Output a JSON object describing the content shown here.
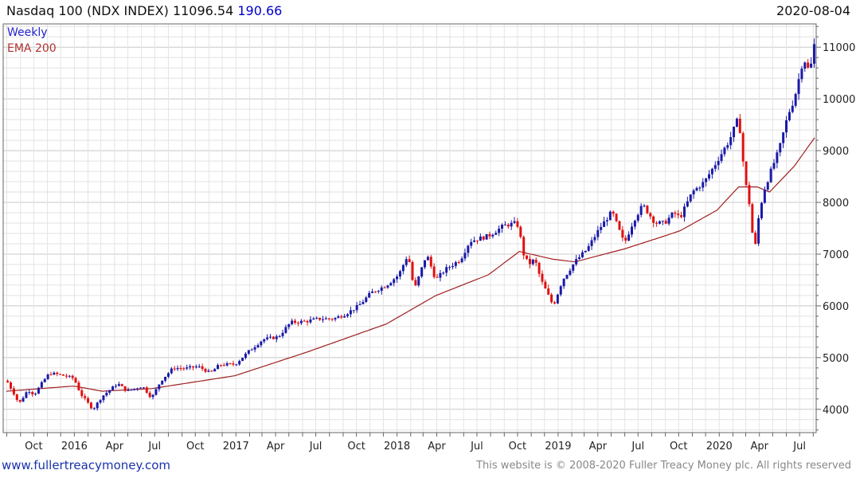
{
  "header": {
    "title": "Nasdaq 100 (NDX INDEX)",
    "last": "11096.54",
    "change": "190.66",
    "date": "2020-08-04"
  },
  "legend": {
    "period": "Weekly",
    "ema": "EMA 200"
  },
  "colors": {
    "up": "#1a1aa8",
    "down": "#e01010",
    "ema": "#a02020",
    "grid": "#d4d4d4",
    "legend_period": "#2222cc",
    "legend_ema": "#b03030"
  },
  "footer": {
    "left": "www.fullertreacymoney.com",
    "right": "This website is © 2008-2020 Fuller Treacy Money plc. All rights reserved"
  },
  "chart_data": {
    "type": "candlestick",
    "period": "weekly",
    "x_start": "2015-07-31",
    "x_end": "2020-08-04",
    "ylim": [
      3550,
      11450
    ],
    "yticks": [
      4000,
      5000,
      6000,
      7000,
      8000,
      9000,
      10000,
      11000
    ],
    "xticks": [
      {
        "label": "Oct",
        "date": "2015-10-01"
      },
      {
        "label": "2016",
        "date": "2016-01-01"
      },
      {
        "label": "Apr",
        "date": "2016-04-01"
      },
      {
        "label": "Jul",
        "date": "2016-07-01"
      },
      {
        "label": "Oct",
        "date": "2016-10-01"
      },
      {
        "label": "2017",
        "date": "2017-01-01"
      },
      {
        "label": "Apr",
        "date": "2017-04-01"
      },
      {
        "label": "Jul",
        "date": "2017-07-01"
      },
      {
        "label": "Oct",
        "date": "2017-10-01"
      },
      {
        "label": "2018",
        "date": "2018-01-01"
      },
      {
        "label": "Apr",
        "date": "2018-04-01"
      },
      {
        "label": "Jul",
        "date": "2018-07-01"
      },
      {
        "label": "Oct",
        "date": "2018-10-01"
      },
      {
        "label": "2019",
        "date": "2019-01-01"
      },
      {
        "label": "Apr",
        "date": "2019-04-01"
      },
      {
        "label": "Jul",
        "date": "2019-07-01"
      },
      {
        "label": "Oct",
        "date": "2019-10-01"
      },
      {
        "label": "2020",
        "date": "2020-01-01"
      },
      {
        "label": "Apr",
        "date": "2020-04-01"
      },
      {
        "label": "Jul",
        "date": "2020-07-01"
      }
    ],
    "close_anchors": [
      [
        "2015-08-01",
        4550
      ],
      [
        "2015-08-21",
        4250
      ],
      [
        "2015-08-28",
        4100
      ],
      [
        "2015-09-18",
        4380
      ],
      [
        "2015-10-02",
        4280
      ],
      [
        "2015-10-23",
        4550
      ],
      [
        "2015-11-06",
        4700
      ],
      [
        "2015-12-04",
        4660
      ],
      [
        "2015-12-31",
        4600
      ],
      [
        "2016-01-15",
        4300
      ],
      [
        "2016-02-12",
        4000
      ],
      [
        "2016-03-04",
        4250
      ],
      [
        "2016-04-08",
        4500
      ],
      [
        "2016-04-29",
        4350
      ],
      [
        "2016-06-03",
        4450
      ],
      [
        "2016-06-24",
        4220
      ],
      [
        "2016-07-15",
        4550
      ],
      [
        "2016-08-12",
        4800
      ],
      [
        "2016-09-09",
        4790
      ],
      [
        "2016-10-07",
        4830
      ],
      [
        "2016-11-04",
        4700
      ],
      [
        "2016-11-25",
        4860
      ],
      [
        "2016-12-30",
        4870
      ],
      [
        "2017-02-03",
        5150
      ],
      [
        "2017-03-03",
        5350
      ],
      [
        "2017-04-07",
        5400
      ],
      [
        "2017-05-05",
        5680
      ],
      [
        "2017-06-09",
        5700
      ],
      [
        "2017-07-07",
        5750
      ],
      [
        "2017-08-11",
        5750
      ],
      [
        "2017-09-08",
        5850
      ],
      [
        "2017-10-06",
        6000
      ],
      [
        "2017-11-03",
        6250
      ],
      [
        "2017-12-08",
        6400
      ],
      [
        "2018-01-05",
        6600
      ],
      [
        "2018-01-26",
        7000
      ],
      [
        "2018-02-09",
        6300
      ],
      [
        "2018-03-09",
        7000
      ],
      [
        "2018-03-30",
        6500
      ],
      [
        "2018-04-20",
        6700
      ],
      [
        "2018-05-25",
        6900
      ],
      [
        "2018-06-15",
        7250
      ],
      [
        "2018-07-06",
        7300
      ],
      [
        "2018-07-27",
        7350
      ],
      [
        "2018-08-31",
        7550
      ],
      [
        "2018-09-28",
        7600
      ],
      [
        "2018-10-05",
        7500
      ],
      [
        "2018-10-12",
        7050
      ],
      [
        "2018-10-26",
        6800
      ],
      [
        "2018-11-09",
        6900
      ],
      [
        "2018-11-23",
        6500
      ],
      [
        "2018-12-21",
        6000
      ],
      [
        "2019-01-11",
        6500
      ],
      [
        "2019-02-08",
        6850
      ],
      [
        "2019-03-08",
        7100
      ],
      [
        "2019-04-05",
        7500
      ],
      [
        "2019-05-03",
        7820
      ],
      [
        "2019-05-31",
        7200
      ],
      [
        "2019-06-21",
        7650
      ],
      [
        "2019-07-12",
        7950
      ],
      [
        "2019-08-09",
        7600
      ],
      [
        "2019-08-30",
        7600
      ],
      [
        "2019-09-20",
        7800
      ],
      [
        "2019-10-04",
        7700
      ],
      [
        "2019-11-01",
        8200
      ],
      [
        "2019-11-29",
        8400
      ],
      [
        "2019-12-27",
        8800
      ],
      [
        "2020-01-24",
        9200
      ],
      [
        "2020-02-14",
        9650
      ],
      [
        "2020-02-28",
        8450
      ],
      [
        "2020-03-13",
        7800
      ],
      [
        "2020-03-20",
        6900
      ],
      [
        "2020-03-27",
        7550
      ],
      [
        "2020-04-10",
        8200
      ],
      [
        "2020-05-01",
        8700
      ],
      [
        "2020-05-15",
        9000
      ],
      [
        "2020-06-05",
        9700
      ],
      [
        "2020-06-19",
        10000
      ],
      [
        "2020-07-10",
        10800
      ],
      [
        "2020-07-24",
        10500
      ],
      [
        "2020-08-04",
        11096.54
      ]
    ],
    "ema_anchors": [
      [
        "2015-08-01",
        4350
      ],
      [
        "2015-12-31",
        4450
      ],
      [
        "2016-03-04",
        4350
      ],
      [
        "2016-06-24",
        4400
      ],
      [
        "2016-12-30",
        4650
      ],
      [
        "2017-06-09",
        5100
      ],
      [
        "2017-12-08",
        5650
      ],
      [
        "2018-03-30",
        6200
      ],
      [
        "2018-07-27",
        6600
      ],
      [
        "2018-10-05",
        7050
      ],
      [
        "2018-12-21",
        6900
      ],
      [
        "2019-02-08",
        6850
      ],
      [
        "2019-05-31",
        7100
      ],
      [
        "2019-08-30",
        7350
      ],
      [
        "2019-10-04",
        7450
      ],
      [
        "2019-12-27",
        7850
      ],
      [
        "2020-02-14",
        8300
      ],
      [
        "2020-03-27",
        8300
      ],
      [
        "2020-04-24",
        8200
      ],
      [
        "2020-06-19",
        8700
      ],
      [
        "2020-08-04",
        9250
      ]
    ]
  }
}
